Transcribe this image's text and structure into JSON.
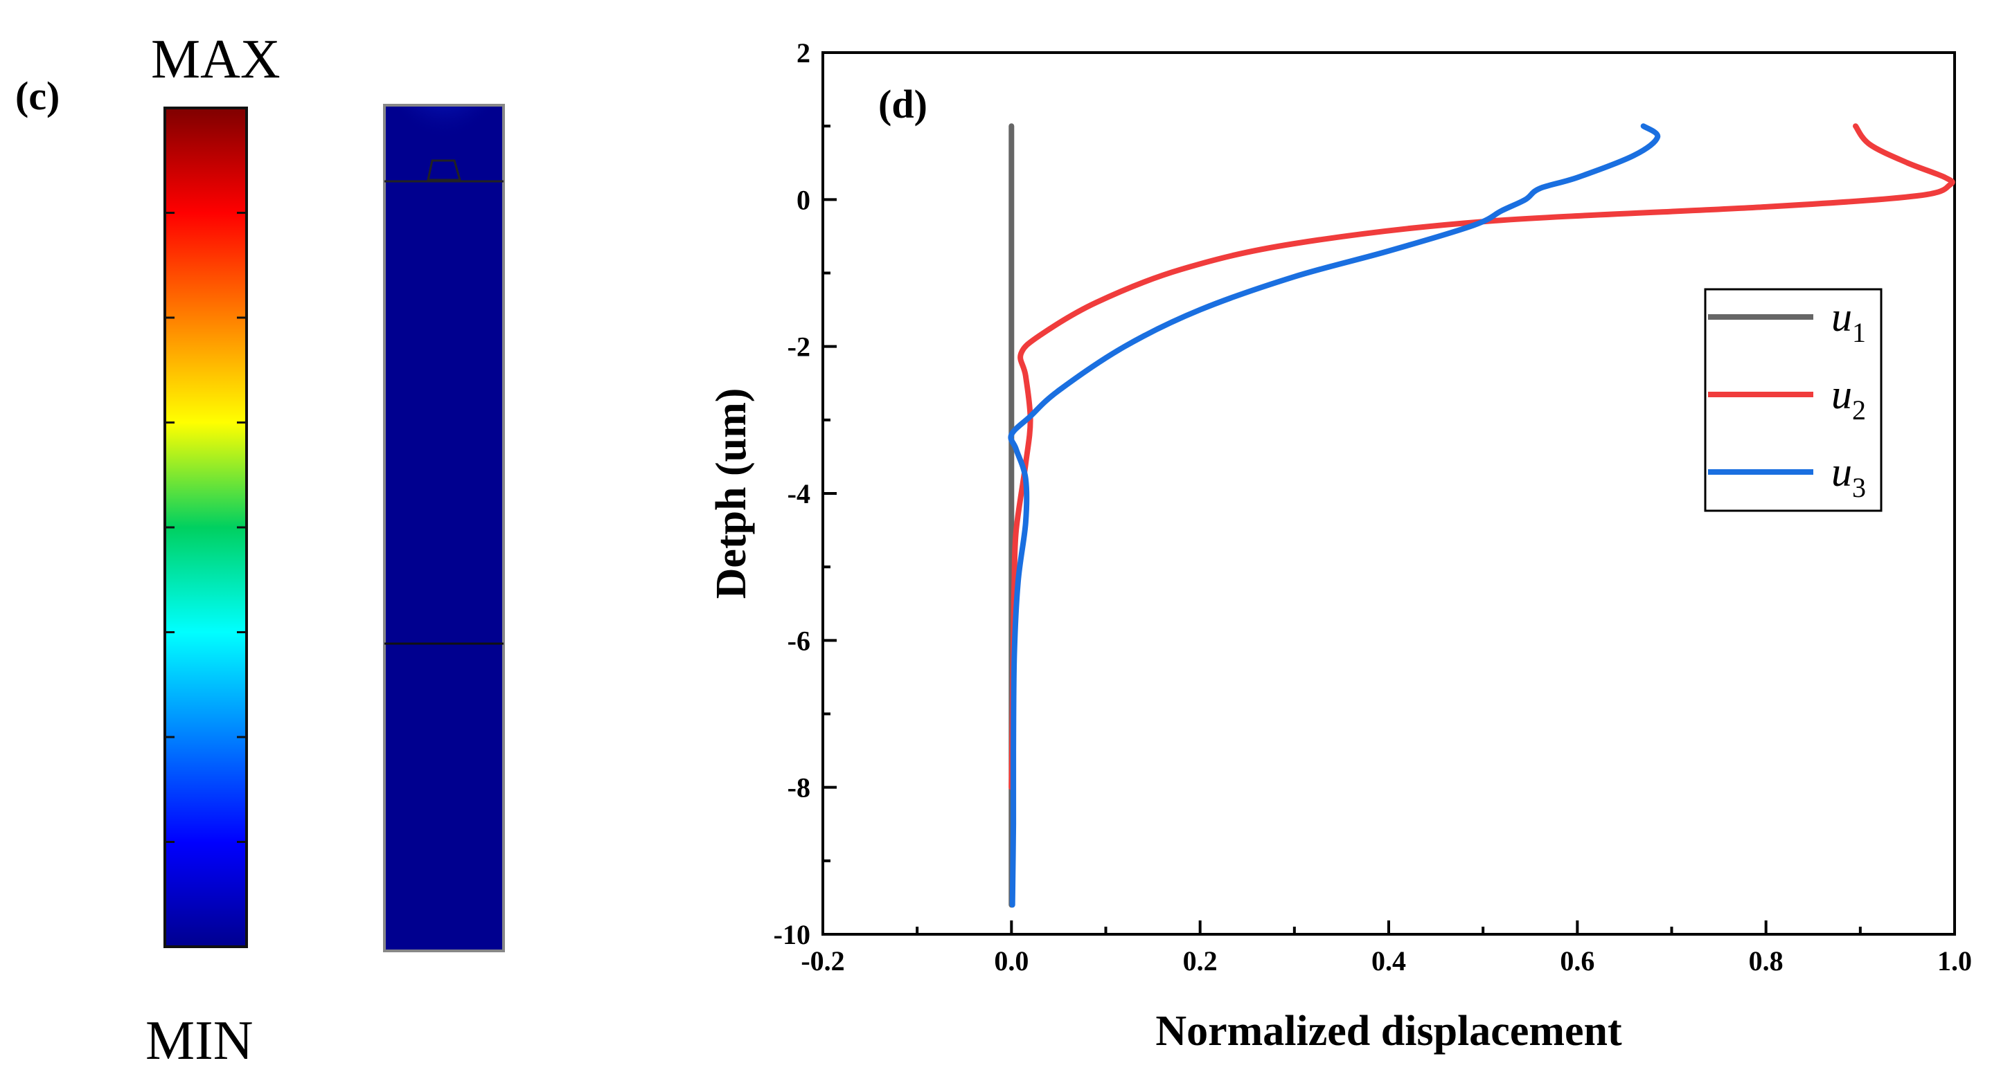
{
  "panel_c": {
    "label": "(c)",
    "max_label": "MAX",
    "min_label": "MIN",
    "colormap": [
      "#7f0000",
      "#ff0000",
      "#ff8000",
      "#ffff00",
      "#00d060",
      "#00ffff",
      "#0080ff",
      "#0000ff",
      "#00008f"
    ]
  },
  "chart_data": {
    "type": "line",
    "panel_label": "(d)",
    "xlabel": "Normalized displacement",
    "ylabel": "Detph (um)",
    "xlim": [
      -0.2,
      1.0
    ],
    "ylim": [
      -10,
      2
    ],
    "xticks": [
      -0.2,
      0.0,
      0.2,
      0.4,
      0.6,
      0.8,
      1.0
    ],
    "xtick_labels": [
      "-0.2",
      "0.0",
      "0.2",
      "0.4",
      "0.6",
      "0.8",
      "1.0"
    ],
    "yticks": [
      -10,
      -8,
      -6,
      -4,
      -2,
      0,
      2
    ],
    "ytick_labels": [
      "-10",
      "-8",
      "-6",
      "-4",
      "-2",
      "0",
      "2"
    ],
    "grid": false,
    "legend_position": "right",
    "series": [
      {
        "name": "u",
        "sub": "1",
        "color": "#666666",
        "points": [
          [
            0.0,
            1.0
          ],
          [
            0.0,
            -9.6
          ]
        ]
      },
      {
        "name": "u",
        "sub": "2",
        "color": "#f03c3c",
        "points": [
          [
            0.895,
            1.0
          ],
          [
            0.91,
            0.75
          ],
          [
            0.95,
            0.5
          ],
          [
            0.99,
            0.3
          ],
          [
            0.995,
            0.2
          ],
          [
            0.96,
            0.05
          ],
          [
            0.8,
            -0.1
          ],
          [
            0.5,
            -0.3
          ],
          [
            0.3,
            -0.6
          ],
          [
            0.18,
            -0.95
          ],
          [
            0.09,
            -1.4
          ],
          [
            0.03,
            -1.85
          ],
          [
            0.01,
            -2.1
          ],
          [
            0.015,
            -2.4
          ],
          [
            0.02,
            -3.0
          ],
          [
            0.015,
            -3.6
          ],
          [
            0.005,
            -4.5
          ],
          [
            0.003,
            -5.2
          ],
          [
            0.002,
            -6.0
          ],
          [
            0.001,
            -7.0
          ],
          [
            0.0,
            -8.0
          ]
        ]
      },
      {
        "name": "u",
        "sub": "3",
        "color": "#1a6fe0",
        "points": [
          [
            0.67,
            1.0
          ],
          [
            0.685,
            0.85
          ],
          [
            0.66,
            0.6
          ],
          [
            0.6,
            0.3
          ],
          [
            0.56,
            0.15
          ],
          [
            0.545,
            0.0
          ],
          [
            0.52,
            -0.15
          ],
          [
            0.49,
            -0.35
          ],
          [
            0.4,
            -0.7
          ],
          [
            0.3,
            -1.05
          ],
          [
            0.2,
            -1.5
          ],
          [
            0.12,
            -2.0
          ],
          [
            0.05,
            -2.6
          ],
          [
            0.02,
            -2.95
          ],
          [
            0.0,
            -3.2
          ],
          [
            0.005,
            -3.4
          ],
          [
            0.015,
            -3.8
          ],
          [
            0.015,
            -4.4
          ],
          [
            0.007,
            -5.2
          ],
          [
            0.003,
            -6.2
          ],
          [
            0.002,
            -7.5
          ],
          [
            0.002,
            -8.5
          ],
          [
            0.001,
            -9.6
          ]
        ]
      }
    ]
  }
}
